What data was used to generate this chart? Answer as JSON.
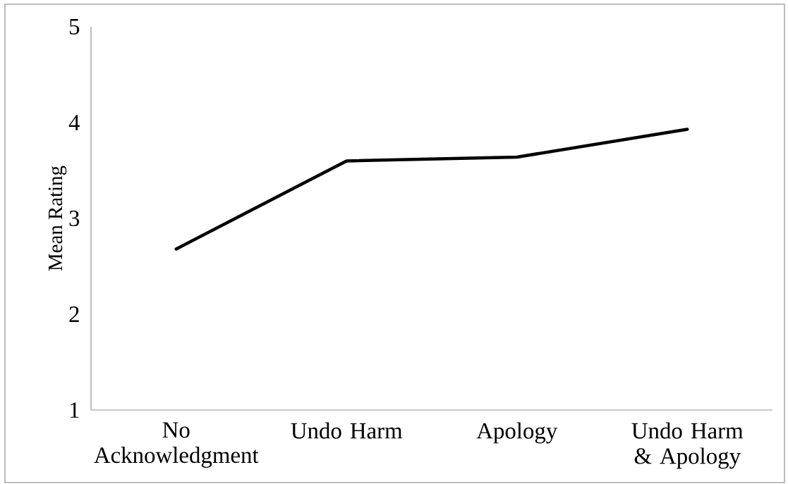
{
  "chart_data": {
    "type": "line",
    "ylabel": "Mean Rating",
    "categories": [
      "No Acknowledgment",
      "Undo Harm",
      "Apology",
      "Undo Harm & Apology"
    ],
    "values": [
      2.68,
      3.6,
      3.64,
      3.93
    ],
    "color": "#000000",
    "ylim": [
      1,
      5
    ],
    "yticks": [
      1,
      2,
      3,
      4,
      5
    ],
    "grid": false,
    "marker": "none",
    "line_style": "solid"
  }
}
